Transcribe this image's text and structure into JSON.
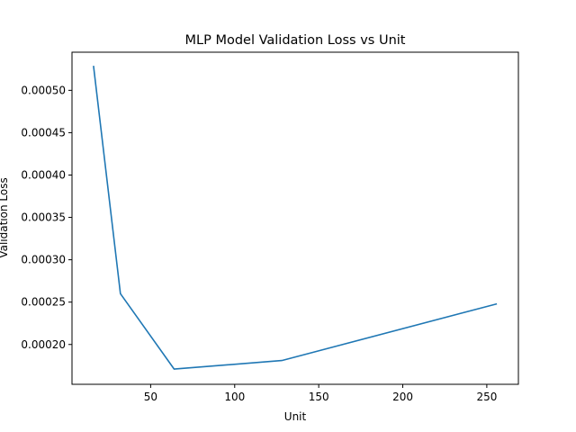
{
  "chart_data": {
    "type": "line",
    "title": "MLP Model Validation Loss vs Unit",
    "xlabel": "Unit",
    "ylabel": "Validation Loss",
    "xlim": [
      3.2,
      268.8
    ],
    "ylim": [
      0.000153,
      0.000545
    ],
    "xticks": [
      50,
      100,
      150,
      200,
      250
    ],
    "xtick_labels": [
      "50",
      "100",
      "150",
      "200",
      "250"
    ],
    "yticks": [
      0.0002,
      0.00025,
      0.0003,
      0.00035,
      0.0004,
      0.00045,
      0.0005
    ],
    "ytick_labels": [
      "0.00020",
      "0.00025",
      "0.00030",
      "0.00035",
      "0.00040",
      "0.00045",
      "0.00050"
    ],
    "grid": false,
    "series": [
      {
        "color": "#1f77b4",
        "x": [
          16,
          32,
          64,
          128,
          256
        ],
        "y": [
          0.000529,
          0.00026,
          0.000171,
          0.000181,
          0.000248
        ]
      }
    ]
  }
}
